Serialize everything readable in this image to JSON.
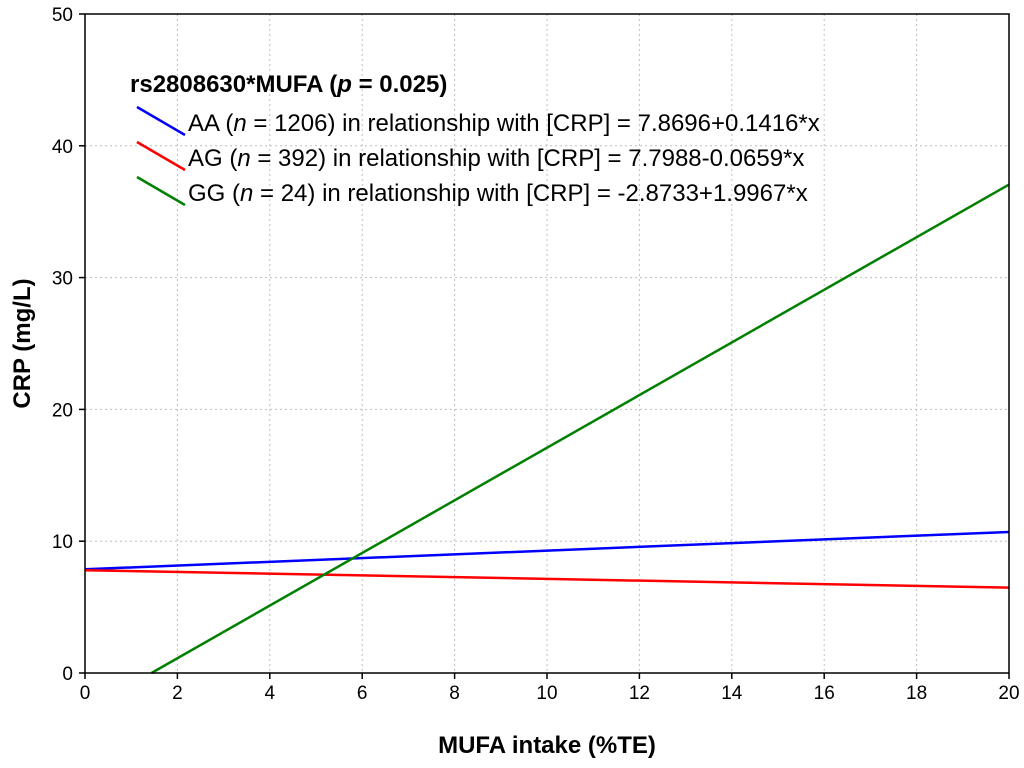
{
  "chart_data": {
    "type": "line",
    "xlabel": "MUFA intake (%TE)",
    "ylabel": "CRP (mg/L)",
    "xlim": [
      0,
      20
    ],
    "ylim": [
      0,
      50
    ],
    "x_ticks": [
      0,
      2,
      4,
      6,
      8,
      10,
      12,
      14,
      16,
      18,
      20
    ],
    "y_ticks": [
      0,
      10,
      20,
      30,
      40,
      50
    ],
    "x_tick_labels": [
      "0",
      "2",
      "4",
      "6",
      "8",
      "10",
      "12",
      "14",
      "16",
      "18",
      "20"
    ],
    "y_tick_labels": [
      "0",
      "10",
      "20",
      "30",
      "40",
      "50"
    ],
    "grid": true,
    "legend_position": "top-left",
    "legend": {
      "title": {
        "prefix": "rs2808630*MUFA (",
        "p_symbol": "p",
        "suffix": " = 0.025)"
      },
      "entries": [
        {
          "genotype": "AA",
          "n_symbol": "n",
          "n_text": " = 1206",
          "relationship": ") in relationship with [CRP] = 7.8696+0.1416*x"
        },
        {
          "genotype": "AG",
          "n_symbol": "n",
          "n_text": " = 392",
          "relationship": ") in relationship with [CRP] = 7.7988-0.0659*x"
        },
        {
          "genotype": "GG",
          "n_symbol": "n",
          "n_text": " = 24",
          "relationship": ") in relationship with [CRP] = -2.8733+1.9967*x"
        }
      ]
    },
    "series": [
      {
        "genotype": "AA",
        "color": "#0000ff",
        "intercept": 7.8696,
        "slope": 0.1416,
        "x": [
          0,
          20
        ],
        "y": [
          7.8696,
          10.7016
        ]
      },
      {
        "genotype": "AG",
        "color": "#ff0000",
        "intercept": 7.7988,
        "slope": -0.0659,
        "x": [
          0,
          20
        ],
        "y": [
          7.7988,
          6.4808
        ]
      },
      {
        "genotype": "GG",
        "color": "#008000",
        "intercept": -2.8733,
        "slope": 1.9967,
        "x": [
          1.439,
          20
        ],
        "y": [
          0,
          37.0607
        ]
      }
    ]
  }
}
